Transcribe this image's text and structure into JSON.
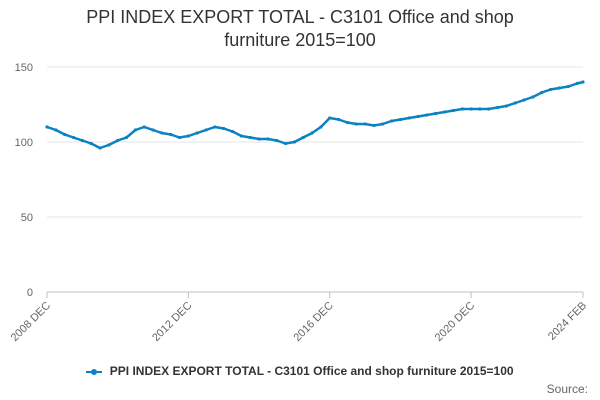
{
  "chart_data": {
    "type": "line",
    "title": "PPI INDEX EXPORT TOTAL - C3101 Office and shop furniture 2015=100",
    "title_lines": [
      "PPI INDEX EXPORT TOTAL - C3101 Office and shop",
      "furniture 2015=100"
    ],
    "xlabel": "",
    "ylabel": "",
    "ylim": [
      0,
      150
    ],
    "yticks": [
      0,
      50,
      100,
      150
    ],
    "xlim": [
      "2008-12",
      "2024-02"
    ],
    "xticks": [
      "2008 DEC",
      "2012 DEC",
      "2016 DEC",
      "2020 DEC",
      "2024 FEB"
    ],
    "grid": true,
    "legend_position": "bottom",
    "series": [
      {
        "name": "PPI INDEX EXPORT TOTAL - C3101 Office and shop furniture 2015=100",
        "color": "#0a83c0",
        "x": [
          "2008-12",
          "2009-03",
          "2009-06",
          "2009-09",
          "2009-12",
          "2010-03",
          "2010-06",
          "2010-09",
          "2010-12",
          "2011-03",
          "2011-06",
          "2011-09",
          "2011-12",
          "2012-03",
          "2012-06",
          "2012-09",
          "2012-12",
          "2013-03",
          "2013-06",
          "2013-09",
          "2013-12",
          "2014-03",
          "2014-06",
          "2014-09",
          "2014-12",
          "2015-03",
          "2015-06",
          "2015-09",
          "2015-12",
          "2016-03",
          "2016-06",
          "2016-09",
          "2016-12",
          "2017-03",
          "2017-06",
          "2017-09",
          "2017-12",
          "2018-03",
          "2018-06",
          "2018-09",
          "2018-12",
          "2019-03",
          "2019-06",
          "2019-09",
          "2019-12",
          "2020-03",
          "2020-06",
          "2020-09",
          "2020-12",
          "2021-03",
          "2021-06",
          "2021-09",
          "2021-12",
          "2022-03",
          "2022-06",
          "2022-09",
          "2022-12",
          "2023-03",
          "2023-06",
          "2023-09",
          "2023-12",
          "2024-02"
        ],
        "values": [
          110,
          108,
          105,
          103,
          101,
          99,
          96,
          98,
          101,
          103,
          108,
          110,
          108,
          106,
          105,
          103,
          104,
          106,
          108,
          110,
          109,
          107,
          104,
          103,
          102,
          102,
          101,
          99,
          100,
          103,
          106,
          110,
          116,
          115,
          113,
          112,
          112,
          111,
          112,
          114,
          115,
          116,
          117,
          118,
          119,
          120,
          121,
          122,
          122,
          122,
          122,
          123,
          124,
          126,
          128,
          130,
          133,
          135,
          136,
          137,
          139,
          140
        ]
      }
    ]
  },
  "legend": {
    "label": "PPI INDEX EXPORT TOTAL - C3101 Office and shop furniture 2015=100"
  },
  "source": {
    "label": "Source:"
  }
}
